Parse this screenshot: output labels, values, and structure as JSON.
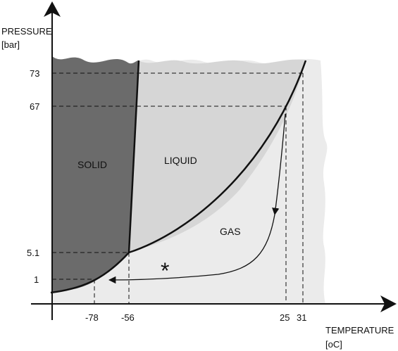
{
  "axes": {
    "y_title_line1": "PRESSURE",
    "y_title_line2": "[bar]",
    "x_title_line1": "TEMPERATURE",
    "x_title_line2": "[oC]"
  },
  "y_ticks": [
    "73",
    "67",
    "5.1",
    "1"
  ],
  "x_ticks": [
    "-78",
    "-56",
    "25",
    "31"
  ],
  "regions": {
    "solid": "SOLID",
    "liquid": "LIQUID",
    "gas": "GAS"
  },
  "marker": "*",
  "colors": {
    "solid": "#6b6b6b",
    "liquid": "#d6d6d6",
    "gas": "#ebebeb",
    "lines": "#111111"
  }
}
